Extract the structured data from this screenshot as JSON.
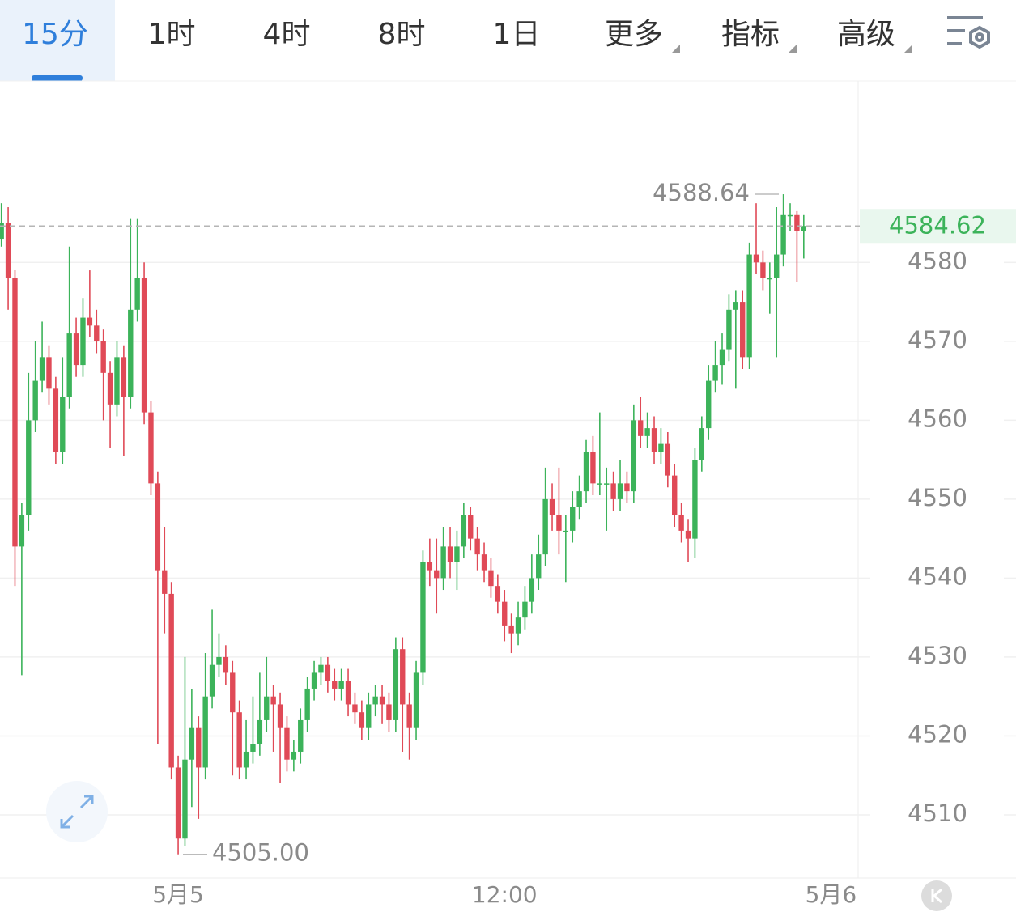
{
  "tabs": [
    "15分",
    "1时",
    "4时",
    "8时",
    "1日"
  ],
  "menus": [
    "更多",
    "指标",
    "高级"
  ],
  "chart_data": {
    "type": "candlestick",
    "up_color": "#3cb35a",
    "down_color": "#e04a57",
    "xlim": [
      -0.2,
      126
    ],
    "xticks": [
      {
        "value": 26,
        "label": "5月5"
      },
      {
        "value": 74,
        "label": "12:00"
      },
      {
        "value": 122,
        "label": "5月6"
      }
    ],
    "ylim": [
      4502,
      4603
    ],
    "yticks": [
      4510,
      4520,
      4530,
      4540,
      4550,
      4560,
      4570,
      4580
    ],
    "grid": true,
    "annotations": [
      {
        "value": 4588.64,
        "label": "4588.64"
      },
      {
        "value": 4505,
        "label": "4505.00"
      }
    ],
    "open": [
      4583,
      4585,
      4578,
      4544,
      4548,
      4560,
      4565,
      4568,
      4564,
      4556,
      4563,
      4571,
      4567,
      4573,
      4572,
      4570,
      4566,
      4562,
      4568,
      4563,
      4574,
      4578,
      4561,
      4552,
      4541,
      4538,
      4516,
      4507,
      4517,
      4521,
      4516,
      4525,
      4529,
      4530,
      4528,
      4523,
      4516,
      4518,
      4519,
      4522,
      4525,
      4524,
      4521,
      4517,
      4518,
      4522,
      4526,
      4528,
      4529,
      4527,
      4526,
      4527,
      4524,
      4523,
      4521,
      4524,
      4525,
      4524,
      4522,
      4531,
      4524,
      4521,
      4528,
      4542,
      4541,
      4540,
      4544,
      4542,
      4544,
      4548,
      4545,
      4543,
      4541,
      4539,
      4537,
      4534,
      4533,
      4535,
      4537,
      4540,
      4543,
      4550,
      4548,
      4546,
      4546,
      4549,
      4551,
      4556,
      4552,
      4552,
      4552,
      4550,
      4552,
      4551,
      4560,
      4558,
      4559,
      4556,
      4557,
      4553,
      4548,
      4546,
      4545,
      4555,
      4559,
      4565,
      4567,
      4569,
      4574,
      4575,
      4568,
      4581,
      4580,
      4578,
      4578,
      4581,
      4586,
      4586,
      4584
    ],
    "high": [
      4587.5,
      4587,
      4579,
      4549.5,
      4566,
      4570,
      4572.5,
      4569.5,
      4565.5,
      4568,
      4582,
      4573,
      4575.5,
      4579,
      4574,
      4571.5,
      4567.5,
      4570,
      4569.5,
      4585.5,
      4585.5,
      4580,
      4562.5,
      4553.5,
      4546.5,
      4539.5,
      4517.5,
      4530,
      4526,
      4522.5,
      4530.5,
      4536,
      4533,
      4531.5,
      4529.5,
      4524.5,
      4522,
      4525,
      4528,
      4530,
      4526.5,
      4525.5,
      4522.5,
      4519.5,
      4523.5,
      4527.5,
      4529.5,
      4530,
      4530,
      4528.5,
      4528.5,
      4528.5,
      4525.5,
      4524.5,
      4525.5,
      4526.5,
      4526.5,
      4525.5,
      4532.5,
      4532.5,
      4525.5,
      4529.5,
      4543.5,
      4545,
      4545,
      4546.5,
      4546.5,
      4546,
      4549.5,
      4549,
      4546.5,
      4544.5,
      4542.5,
      4540.5,
      4538.5,
      4535.5,
      4537,
      4539,
      4543,
      4545.5,
      4554,
      4552,
      4554,
      4548,
      4551,
      4553,
      4557.5,
      4558,
      4561,
      4554,
      4553.5,
      4555,
      4553.5,
      4562,
      4563,
      4561,
      4560.5,
      4559,
      4558.5,
      4554.5,
      4549.5,
      4547.5,
      4556.5,
      4560.5,
      4567,
      4570,
      4571,
      4576,
      4576.5,
      4576.5,
      4582.5,
      4587.5,
      4581.5,
      4580,
      4587,
      4588.64,
      4587.5,
      4586.5,
      4586
    ],
    "low": [
      4582,
      4574,
      4539,
      4527.7,
      4546,
      4558.5,
      4563.5,
      4562,
      4554.5,
      4554.5,
      4561.5,
      4565.5,
      4565.5,
      4570.5,
      4568.5,
      4560,
      4556.5,
      4560.5,
      4555.5,
      4561.5,
      4572.5,
      4559.5,
      4550.5,
      4519,
      4533,
      4514.5,
      4505,
      4506,
      4511,
      4509.5,
      4514.5,
      4523.5,
      4527.5,
      4526.5,
      4515,
      4514.5,
      4514.5,
      4516.5,
      4517.5,
      4520.5,
      4518,
      4514,
      4515.5,
      4515.5,
      4516.5,
      4520.5,
      4524.5,
      4526.5,
      4525.5,
      4524.5,
      4524.5,
      4522.5,
      4521.5,
      4519.5,
      4519.5,
      4522.5,
      4521.5,
      4520.5,
      4520.5,
      4518,
      4517,
      4519.5,
      4526.5,
      4539,
      4535.5,
      4538.5,
      4540,
      4538.5,
      4542.5,
      4543.5,
      4541,
      4539.5,
      4537.5,
      4535.5,
      4532,
      4530.5,
      4531.5,
      4533.5,
      4535.5,
      4538.5,
      4541.5,
      4546,
      4543,
      4539.5,
      4544.5,
      4547.5,
      4549.5,
      4550.5,
      4550.5,
      4546,
      4548.5,
      4548.5,
      4549.5,
      4549.5,
      4556.5,
      4556.5,
      4554.5,
      4554.5,
      4551.5,
      4546.5,
      4544.5,
      4542,
      4542.5,
      4553.5,
      4557.5,
      4563.5,
      4564.5,
      4567.5,
      4564,
      4566.5,
      4566.5,
      4578.5,
      4576.5,
      4573.5,
      4568,
      4579.5,
      4584,
      4577.5,
      4580.5
    ],
    "close": [
      4585,
      4578,
      4544,
      4548,
      4560,
      4565,
      4568,
      4564,
      4556,
      4563,
      4571,
      4567,
      4573,
      4572,
      4570,
      4566,
      4562,
      4568,
      4563,
      4574,
      4578,
      4561,
      4552,
      4541,
      4538,
      4516,
      4507,
      4517,
      4521,
      4516,
      4525,
      4529,
      4530,
      4528,
      4523,
      4516,
      4518,
      4519,
      4522,
      4525,
      4524,
      4521,
      4517,
      4518,
      4522,
      4526,
      4528,
      4529,
      4527,
      4526,
      4527,
      4524,
      4523,
      4521,
      4524,
      4525,
      4524,
      4522,
      4531,
      4524,
      4521,
      4528,
      4542,
      4541,
      4540,
      4544,
      4542,
      4544,
      4548,
      4545,
      4543,
      4541,
      4539,
      4537,
      4534,
      4533,
      4535,
      4537,
      4540,
      4543,
      4550,
      4548,
      4546,
      4546,
      4549,
      4551,
      4556,
      4552,
      4552,
      4552,
      4550,
      4552,
      4551,
      4560,
      4558,
      4559,
      4556,
      4557,
      4553,
      4548,
      4546,
      4545,
      4555,
      4559,
      4565,
      4567,
      4569,
      4574,
      4575,
      4568,
      4581,
      4580,
      4578,
      4578,
      4581,
      4586,
      4586,
      4584,
      4584.62
    ]
  }
}
